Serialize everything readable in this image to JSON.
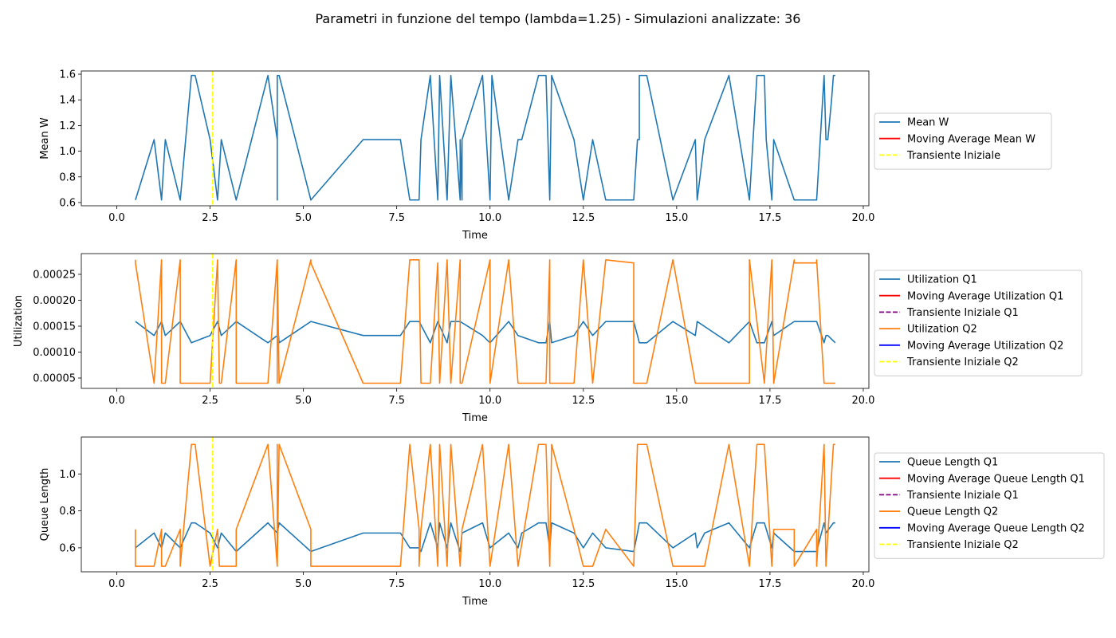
{
  "figure": {
    "title": "Parametri in funzione del tempo (lambda=1.25) - Simulazioni analizzate: 36"
  },
  "chart_data": [
    {
      "type": "line",
      "xlabel": "Time",
      "ylabel": "Mean W",
      "xlim": [
        -0.95,
        20.15
      ],
      "ylim": [
        0.575,
        1.625
      ],
      "xticks": [
        0.0,
        2.5,
        5.0,
        7.5,
        10.0,
        12.5,
        15.0,
        17.5,
        20.0
      ],
      "xtick_labels": [
        "0.0",
        "2.5",
        "5.0",
        "7.5",
        "10.0",
        "12.5",
        "15.0",
        "17.5",
        "20.0"
      ],
      "yticks": [
        0.6,
        0.8,
        1.0,
        1.2,
        1.4,
        1.6
      ],
      "ytick_labels": [
        "0.6",
        "0.8",
        "1.0",
        "1.2",
        "1.4",
        "1.6"
      ],
      "legend_position": "outside-right",
      "vline": {
        "x": 2.57,
        "color": "#ffff00",
        "style": "dashed"
      },
      "legend": [
        {
          "label": "Mean W",
          "color": "#1f77b4",
          "dashed": false
        },
        {
          "label": "Moving Average Mean W",
          "color": "#ff0000",
          "dashed": false
        },
        {
          "label": "Transiente Iniziale",
          "color": "#ffff00",
          "dashed": true
        }
      ],
      "series": [
        {
          "name": "Mean W",
          "color": "#1f77b4",
          "x": [
            0.5,
            1.0,
            1.2,
            1.3,
            1.7,
            2.0,
            2.1,
            2.5,
            2.7,
            2.8,
            3.2,
            4.05,
            4.3,
            4.3,
            4.3,
            4.35,
            5.2,
            6.6,
            7.6,
            7.85,
            8.1,
            8.15,
            8.4,
            8.6,
            8.65,
            8.85,
            8.95,
            9.2,
            9.2,
            9.25,
            9.25,
            9.8,
            10.0,
            10.05,
            10.5,
            10.75,
            10.85,
            11.3,
            11.5,
            11.6,
            11.65,
            12.25,
            12.5,
            12.75,
            13.1,
            13.85,
            13.95,
            14.0,
            14.0,
            14.2,
            14.9,
            15.5,
            15.55,
            15.75,
            16.4,
            16.95,
            17.15,
            17.35,
            17.4,
            17.55,
            17.6,
            18.15,
            18.75,
            18.95,
            19.0,
            19.05,
            19.15,
            19.2,
            19.25
          ],
          "y": [
            0.62,
            1.09,
            0.62,
            1.09,
            0.62,
            1.59,
            1.59,
            1.09,
            0.62,
            1.09,
            0.62,
            1.59,
            1.09,
            0.62,
            1.59,
            1.59,
            0.62,
            1.09,
            1.09,
            0.62,
            0.62,
            1.09,
            1.59,
            0.62,
            1.59,
            0.62,
            1.59,
            0.62,
            1.09,
            0.62,
            1.09,
            1.59,
            0.62,
            1.59,
            0.62,
            1.09,
            1.09,
            1.59,
            1.59,
            0.62,
            1.59,
            1.09,
            0.62,
            1.09,
            0.62,
            0.62,
            1.09,
            1.09,
            1.59,
            1.59,
            0.62,
            1.09,
            0.62,
            1.09,
            1.59,
            0.62,
            1.59,
            1.59,
            1.09,
            0.62,
            1.09,
            0.62,
            0.62,
            1.59,
            1.09,
            1.09,
            1.4,
            1.59,
            1.59
          ]
        }
      ]
    },
    {
      "type": "line",
      "xlabel": "Time",
      "ylabel": "Utilization",
      "xlim": [
        -0.95,
        20.15
      ],
      "ylim": [
        3e-05,
        0.00029
      ],
      "xticks": [
        0.0,
        2.5,
        5.0,
        7.5,
        10.0,
        12.5,
        15.0,
        17.5,
        20.0
      ],
      "xtick_labels": [
        "0.0",
        "2.5",
        "5.0",
        "7.5",
        "10.0",
        "12.5",
        "15.0",
        "17.5",
        "20.0"
      ],
      "yticks": [
        5e-05,
        0.0001,
        0.00015,
        0.0002,
        0.00025
      ],
      "ytick_labels": [
        "0.00005",
        "0.00010",
        "0.00015",
        "0.00020",
        "0.00025"
      ],
      "legend_position": "outside-right",
      "vline": {
        "x": 2.57,
        "color": "#ffff00",
        "style": "dashed"
      },
      "legend": [
        {
          "label": "Utilization Q1",
          "color": "#1f77b4",
          "dashed": false
        },
        {
          "label": "Moving Average Utilization Q1",
          "color": "#ff0000",
          "dashed": false
        },
        {
          "label": "Transiente Iniziale Q1",
          "color": "#800080",
          "dashed": true
        },
        {
          "label": "Utilization Q2",
          "color": "#ff7f0e",
          "dashed": false
        },
        {
          "label": "Moving Average Utilization Q2",
          "color": "#0000ff",
          "dashed": false
        },
        {
          "label": "Transiente Iniziale Q2",
          "color": "#ffff00",
          "dashed": true
        }
      ],
      "series": [
        {
          "name": "Utilization Q1",
          "color": "#1f77b4",
          "x": [
            0.5,
            1.0,
            1.2,
            1.3,
            1.7,
            2.0,
            2.5,
            2.7,
            2.8,
            3.2,
            4.05,
            4.3,
            4.3,
            4.35,
            5.2,
            6.6,
            7.6,
            7.85,
            8.1,
            8.4,
            8.6,
            8.85,
            8.95,
            9.2,
            9.8,
            10.0,
            10.5,
            10.75,
            11.3,
            11.5,
            11.6,
            11.65,
            12.25,
            12.5,
            12.75,
            13.1,
            13.85,
            13.95,
            14.0,
            14.2,
            14.9,
            15.5,
            15.55,
            16.4,
            16.95,
            17.15,
            17.35,
            17.55,
            17.6,
            18.15,
            18.75,
            18.95,
            19.0,
            19.05,
            19.25
          ],
          "y": [
            0.000159,
            0.000132,
            0.000159,
            0.000132,
            0.000159,
            0.000118,
            0.000132,
            0.000159,
            0.000132,
            0.000159,
            0.000118,
            0.000132,
            0.000159,
            0.000118,
            0.000159,
            0.000132,
            0.000132,
            0.000159,
            0.000159,
            0.000118,
            0.000159,
            0.000118,
            0.000159,
            0.000159,
            0.000132,
            0.000118,
            0.000159,
            0.000132,
            0.000118,
            0.000118,
            0.000159,
            0.000118,
            0.000132,
            0.000159,
            0.000132,
            0.000159,
            0.000159,
            0.000132,
            0.000118,
            0.000118,
            0.000159,
            0.000132,
            0.000159,
            0.000118,
            0.000159,
            0.000118,
            0.000118,
            0.000159,
            0.000132,
            0.000159,
            0.000159,
            0.000118,
            0.000132,
            0.000132,
            0.000118
          ]
        },
        {
          "name": "Utilization Q2",
          "color": "#ff7f0e",
          "x": [
            0.5,
            0.5,
            1.0,
            1.2,
            1.2,
            1.3,
            1.7,
            1.7,
            2.0,
            2.5,
            2.7,
            2.75,
            2.8,
            3.2,
            3.2,
            4.05,
            4.3,
            4.3,
            4.3,
            4.35,
            5.2,
            5.2,
            6.6,
            7.6,
            7.85,
            8.1,
            8.1,
            8.15,
            8.4,
            8.6,
            8.65,
            8.85,
            8.95,
            9.2,
            9.2,
            9.25,
            10.0,
            10.0,
            10.5,
            10.75,
            11.3,
            11.5,
            11.6,
            11.6,
            11.65,
            12.25,
            12.5,
            12.75,
            13.1,
            13.85,
            13.85,
            13.95,
            14.2,
            14.9,
            15.5,
            15.55,
            16.4,
            16.95,
            16.95,
            17.35,
            17.55,
            17.6,
            18.15,
            18.15,
            18.75,
            18.75,
            18.95,
            19.0,
            19.25
          ],
          "y": [
            0.000278,
            0.000272,
            4e-05,
            0.000278,
            4e-05,
            4e-05,
            0.000278,
            4e-05,
            4e-05,
            4e-05,
            0.000278,
            4e-05,
            4e-05,
            0.000278,
            4e-05,
            4e-05,
            0.000278,
            4e-05,
            0.000278,
            4e-05,
            0.000278,
            0.000272,
            4e-05,
            4e-05,
            0.000278,
            0.000278,
            0.000272,
            4e-05,
            4e-05,
            0.000272,
            4e-05,
            0.000278,
            4e-05,
            0.000278,
            4e-05,
            4e-05,
            0.000278,
            4e-05,
            0.000278,
            4e-05,
            4e-05,
            4e-05,
            0.000278,
            4e-05,
            4e-05,
            4e-05,
            0.000278,
            4e-05,
            0.000278,
            0.000272,
            4e-05,
            4e-05,
            4e-05,
            0.000278,
            4e-05,
            4e-05,
            4e-05,
            4e-05,
            0.000278,
            4e-05,
            0.000278,
            4e-05,
            0.000278,
            0.000272,
            0.000272,
            0.000278,
            4e-05,
            4e-05,
            4e-05
          ]
        }
      ]
    },
    {
      "type": "line",
      "xlabel": "Time",
      "ylabel": "Queue Length",
      "xlim": [
        -0.95,
        20.15
      ],
      "ylim": [
        0.47,
        1.2
      ],
      "xticks": [
        0.0,
        2.5,
        5.0,
        7.5,
        10.0,
        12.5,
        15.0,
        17.5,
        20.0
      ],
      "xtick_labels": [
        "0.0",
        "2.5",
        "5.0",
        "7.5",
        "10.0",
        "12.5",
        "15.0",
        "17.5",
        "20.0"
      ],
      "yticks": [
        0.6,
        0.8,
        1.0
      ],
      "ytick_labels": [
        "0.6",
        "0.8",
        "1.0"
      ],
      "legend_position": "outside-right",
      "vline": {
        "x": 2.57,
        "color": "#ffff00",
        "style": "dashed"
      },
      "legend": [
        {
          "label": "Queue Length Q1",
          "color": "#1f77b4",
          "dashed": false
        },
        {
          "label": "Moving Average Queue Length Q1",
          "color": "#ff0000",
          "dashed": false
        },
        {
          "label": "Transiente Iniziale Q1",
          "color": "#800080",
          "dashed": true
        },
        {
          "label": "Queue Length Q2",
          "color": "#ff7f0e",
          "dashed": false
        },
        {
          "label": "Moving Average Queue Length Q2",
          "color": "#0000ff",
          "dashed": false
        },
        {
          "label": "Transiente Iniziale Q2",
          "color": "#ffff00",
          "dashed": true
        }
      ],
      "series": [
        {
          "name": "Queue Length Q1",
          "color": "#1f77b4",
          "x": [
            0.5,
            1.0,
            1.2,
            1.3,
            1.7,
            2.0,
            2.1,
            2.5,
            2.7,
            2.8,
            3.2,
            4.05,
            4.3,
            4.35,
            5.2,
            6.6,
            7.6,
            7.85,
            8.1,
            8.15,
            8.4,
            8.6,
            8.65,
            8.85,
            8.95,
            9.2,
            9.25,
            9.8,
            10.0,
            10.5,
            10.75,
            10.85,
            11.3,
            11.5,
            11.6,
            11.65,
            12.25,
            12.5,
            12.75,
            13.1,
            13.85,
            13.95,
            14.0,
            14.2,
            14.9,
            15.5,
            15.55,
            15.75,
            16.4,
            16.95,
            17.15,
            17.35,
            17.55,
            17.6,
            18.15,
            18.75,
            18.95,
            19.0,
            19.2,
            19.25
          ],
          "y": [
            0.6,
            0.68,
            0.6,
            0.68,
            0.6,
            0.735,
            0.735,
            0.68,
            0.6,
            0.68,
            0.58,
            0.735,
            0.68,
            0.735,
            0.58,
            0.68,
            0.68,
            0.6,
            0.6,
            0.58,
            0.735,
            0.6,
            0.735,
            0.6,
            0.735,
            0.58,
            0.68,
            0.735,
            0.6,
            0.68,
            0.6,
            0.68,
            0.735,
            0.735,
            0.6,
            0.735,
            0.68,
            0.6,
            0.68,
            0.6,
            0.58,
            0.68,
            0.735,
            0.735,
            0.6,
            0.68,
            0.6,
            0.68,
            0.735,
            0.6,
            0.735,
            0.735,
            0.6,
            0.68,
            0.58,
            0.58,
            0.735,
            0.68,
            0.735,
            0.735
          ]
        },
        {
          "name": "Queue Length Q2",
          "color": "#ff7f0e",
          "x": [
            0.5,
            0.5,
            1.0,
            1.2,
            1.2,
            1.3,
            1.7,
            1.7,
            2.0,
            2.1,
            2.5,
            2.7,
            2.75,
            2.8,
            3.2,
            3.2,
            4.05,
            4.3,
            4.3,
            4.3,
            4.35,
            5.2,
            5.2,
            6.6,
            7.6,
            7.85,
            8.1,
            8.1,
            8.15,
            8.4,
            8.6,
            8.65,
            8.85,
            8.95,
            9.2,
            9.25,
            9.8,
            10.0,
            10.5,
            10.75,
            11.3,
            11.5,
            11.6,
            11.65,
            12.25,
            12.5,
            12.75,
            13.1,
            13.85,
            13.95,
            14.2,
            14.9,
            15.55,
            15.75,
            16.4,
            16.95,
            17.15,
            17.35,
            17.55,
            17.6,
            18.15,
            18.15,
            18.75,
            18.75,
            18.95,
            19.0,
            19.2,
            19.25
          ],
          "y": [
            0.7,
            0.5,
            0.5,
            0.7,
            0.5,
            0.5,
            0.7,
            0.5,
            1.16,
            1.16,
            0.5,
            0.7,
            0.5,
            0.5,
            0.5,
            0.7,
            1.16,
            0.5,
            1.16,
            0.5,
            1.16,
            0.7,
            0.5,
            0.5,
            0.5,
            1.16,
            0.7,
            0.5,
            0.7,
            1.16,
            0.5,
            1.16,
            0.5,
            1.16,
            0.5,
            0.7,
            1.16,
            0.5,
            1.16,
            0.5,
            1.16,
            1.16,
            0.5,
            1.16,
            0.7,
            0.5,
            0.5,
            0.7,
            0.5,
            1.16,
            1.16,
            0.5,
            0.5,
            0.5,
            1.16,
            0.5,
            1.16,
            1.16,
            0.5,
            0.7,
            0.7,
            0.5,
            0.7,
            0.5,
            1.16,
            0.5,
            1.16,
            1.16
          ]
        }
      ]
    }
  ]
}
